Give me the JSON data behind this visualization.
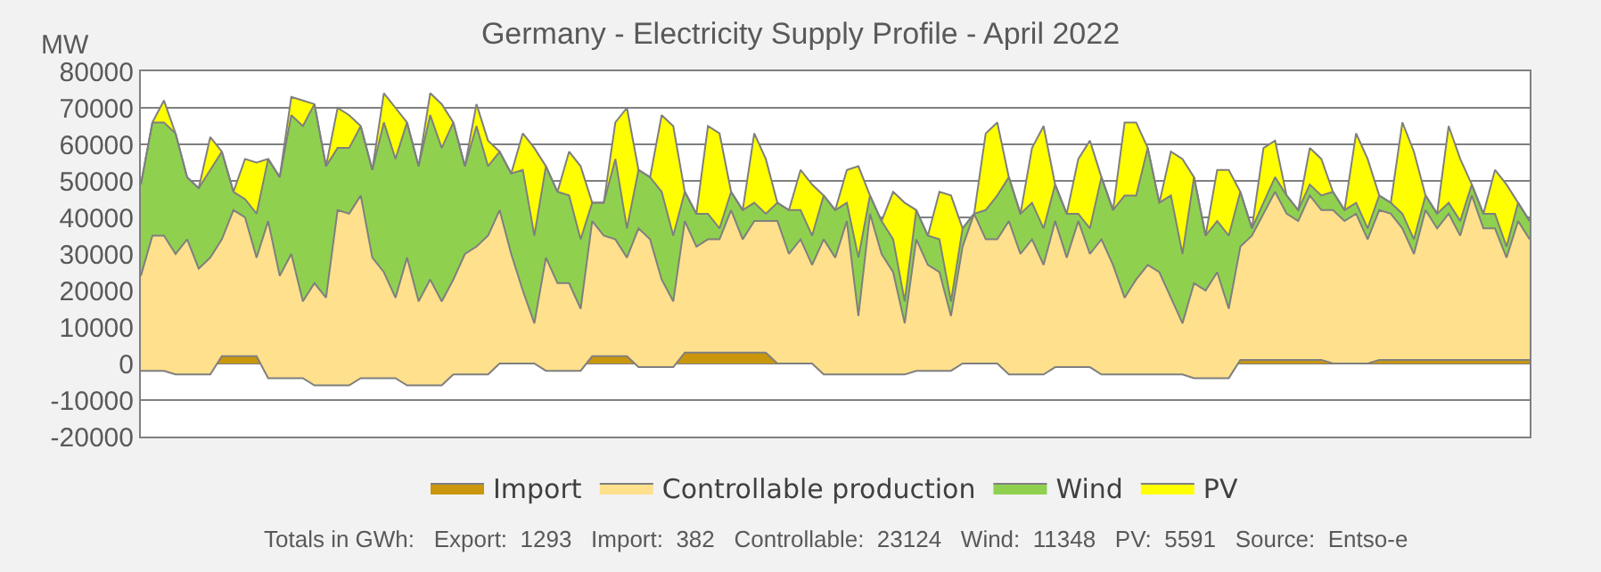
{
  "chart_data": {
    "type": "area",
    "stacked": true,
    "title": "Germany - Electricity Supply Profile - April 2022",
    "ylabel": "MW",
    "categories": [
      null,
      null,
      null,
      null,
      null,
      null,
      null,
      null,
      null,
      null,
      null,
      null,
      null,
      null,
      null,
      null,
      null,
      null,
      null,
      null,
      null,
      null,
      null,
      null,
      null,
      null,
      null,
      null,
      null,
      null,
      null,
      null,
      null,
      null,
      null,
      null,
      null,
      null,
      null,
      null,
      null,
      null,
      null,
      null,
      null,
      null,
      null,
      null,
      null,
      null,
      null,
      null,
      null,
      null,
      null,
      null,
      null,
      null,
      null,
      null,
      null,
      null,
      null,
      null,
      null,
      null,
      null,
      null,
      null,
      null,
      null,
      null,
      null,
      null,
      null,
      null,
      null,
      null,
      null,
      null,
      null,
      null,
      null,
      null,
      null,
      null,
      null,
      null,
      null,
      null,
      null,
      null,
      null,
      null,
      null,
      null,
      null,
      null,
      null,
      null,
      null,
      null,
      null,
      null,
      null,
      null,
      null,
      null,
      null,
      null,
      null,
      null,
      null,
      null,
      null,
      null,
      null,
      null,
      null,
      null,
      null
    ],
    "series": [
      {
        "name": "Import",
        "color": "#c9960c",
        "values": [
          -2000,
          -2000,
          -2000,
          -3000,
          -3000,
          -3000,
          -3000,
          2000,
          2000,
          2000,
          2000,
          -4000,
          -4000,
          -4000,
          -4000,
          -6000,
          -6000,
          -6000,
          -6000,
          -4000,
          -4000,
          -4000,
          -4000,
          -6000,
          -6000,
          -6000,
          -6000,
          -3000,
          -3000,
          -3000,
          -3000,
          0,
          0,
          0,
          0,
          -2000,
          -2000,
          -2000,
          -2000,
          2000,
          2000,
          2000,
          2000,
          -1000,
          -1000,
          -1000,
          -1000,
          3000,
          3000,
          3000,
          3000,
          3000,
          3000,
          3000,
          3000,
          0,
          0,
          0,
          0,
          -3000,
          -3000,
          -3000,
          -3000,
          -3000,
          -3000,
          -3000,
          -3000,
          -2000,
          -2000,
          -2000,
          -2000,
          0,
          0,
          0,
          0,
          -3000,
          -3000,
          -3000,
          -3000,
          -1000,
          -1000,
          -1000,
          -1000,
          -3000,
          -3000,
          -3000,
          -3000,
          -3000,
          -3000,
          -3000,
          -3000,
          -4000,
          -4000,
          -4000,
          -4000,
          1000,
          1000,
          1000,
          1000,
          1000,
          1000,
          1000,
          1000,
          0,
          0,
          0,
          0,
          1000,
          1000,
          1000,
          1000,
          1000,
          1000,
          1000,
          1000,
          1000,
          1000,
          1000,
          1000,
          1000,
          1000
        ]
      },
      {
        "name": "Controllable production",
        "color": "#ffe08c",
        "values": [
          26000,
          37000,
          37000,
          33000,
          37000,
          29000,
          32000,
          32000,
          40000,
          38000,
          27000,
          43000,
          28000,
          34000,
          21000,
          28000,
          24000,
          48000,
          47000,
          50000,
          33000,
          29000,
          22000,
          35000,
          23000,
          29000,
          23000,
          26000,
          33000,
          35000,
          38000,
          42000,
          30000,
          20000,
          11000,
          31000,
          24000,
          24000,
          17000,
          37000,
          33000,
          32000,
          27000,
          38000,
          35000,
          24000,
          18000,
          36000,
          29000,
          31000,
          31000,
          39000,
          31000,
          36000,
          36000,
          39000,
          30000,
          34000,
          27000,
          37000,
          32000,
          42000,
          16000,
          44000,
          33000,
          28000,
          14000,
          36000,
          29000,
          27000,
          15000,
          32000,
          41000,
          34000,
          34000,
          42000,
          33000,
          37000,
          30000,
          40000,
          30000,
          40000,
          31000,
          37000,
          30000,
          21000,
          26000,
          30000,
          28000,
          21000,
          14000,
          26000,
          24000,
          29000,
          19000,
          31000,
          34000,
          40000,
          46000,
          40000,
          38000,
          45000,
          41000,
          42000,
          39000,
          41000,
          34000,
          41000,
          40000,
          36000,
          29000,
          41000,
          36000,
          40000,
          34000,
          45000,
          36000,
          36000,
          28000,
          38000,
          33000
        ]
      },
      {
        "name": "Wind",
        "color": "#8fd14f",
        "values": [
          25000,
          31000,
          31000,
          33000,
          17000,
          22000,
          24000,
          24000,
          5000,
          5000,
          12000,
          17000,
          27000,
          38000,
          48000,
          49000,
          36000,
          17000,
          18000,
          19000,
          24000,
          41000,
          38000,
          37000,
          37000,
          45000,
          42000,
          43000,
          24000,
          33000,
          19000,
          16000,
          22000,
          33000,
          24000,
          25000,
          25000,
          24000,
          19000,
          5000,
          9000,
          22000,
          8000,
          16000,
          17000,
          24000,
          18000,
          8000,
          9000,
          7000,
          3000,
          5000,
          8000,
          5000,
          2000,
          5000,
          12000,
          8000,
          8000,
          12000,
          13000,
          5000,
          16000,
          5000,
          9000,
          9000,
          6000,
          8000,
          8000,
          9000,
          4000,
          5000,
          0,
          8000,
          12000,
          12000,
          11000,
          10000,
          10000,
          10000,
          12000,
          2000,
          7000,
          17000,
          15000,
          28000,
          23000,
          32000,
          19000,
          28000,
          19000,
          29000,
          15000,
          14000,
          20000,
          15000,
          2000,
          3000,
          4000,
          5000,
          3000,
          3000,
          4000,
          5000,
          3000,
          3000,
          3000,
          4000,
          3000,
          4000,
          4000,
          4000,
          4000,
          3000,
          4000,
          3000,
          4000,
          4000,
          3000,
          5000,
          5000
        ]
      },
      {
        "name": "PV",
        "color": "#ffff00",
        "values": [
          0,
          0,
          6000,
          0,
          0,
          0,
          9000,
          0,
          0,
          11000,
          14000,
          0,
          0,
          5000,
          7000,
          0,
          0,
          11000,
          9000,
          0,
          0,
          8000,
          14000,
          0,
          0,
          6000,
          12000,
          0,
          0,
          6000,
          7000,
          0,
          0,
          10000,
          24000,
          0,
          0,
          12000,
          20000,
          0,
          0,
          10000,
          33000,
          0,
          0,
          21000,
          30000,
          0,
          0,
          24000,
          26000,
          0,
          0,
          19000,
          15000,
          0,
          0,
          11000,
          14000,
          0,
          0,
          9000,
          25000,
          0,
          0,
          13000,
          27000,
          0,
          0,
          13000,
          29000,
          0,
          0,
          21000,
          20000,
          0,
          0,
          15000,
          28000,
          0,
          0,
          15000,
          24000,
          0,
          0,
          20000,
          20000,
          0,
          0,
          12000,
          26000,
          0,
          0,
          14000,
          18000,
          0,
          0,
          15000,
          10000,
          0,
          0,
          10000,
          10000,
          0,
          0,
          19000,
          19000,
          0,
          0,
          25000,
          24000,
          0,
          0,
          21000,
          17000,
          0,
          0,
          12000,
          17000,
          0,
          0
        ]
      }
    ],
    "ylim": [
      -20000,
      80000
    ],
    "yticks": [
      -20000,
      -10000,
      0,
      10000,
      20000,
      30000,
      40000,
      50000,
      60000,
      70000,
      80000
    ],
    "tick_labels": "y",
    "grid": "y",
    "legend": "bottom",
    "marker": "none",
    "annotations": [
      "Totals in GWh:   Export:  1293   Import:  382   Controllable:  23124   Wind:  11348   PV:  5591   Source:  Entso-e"
    ]
  }
}
